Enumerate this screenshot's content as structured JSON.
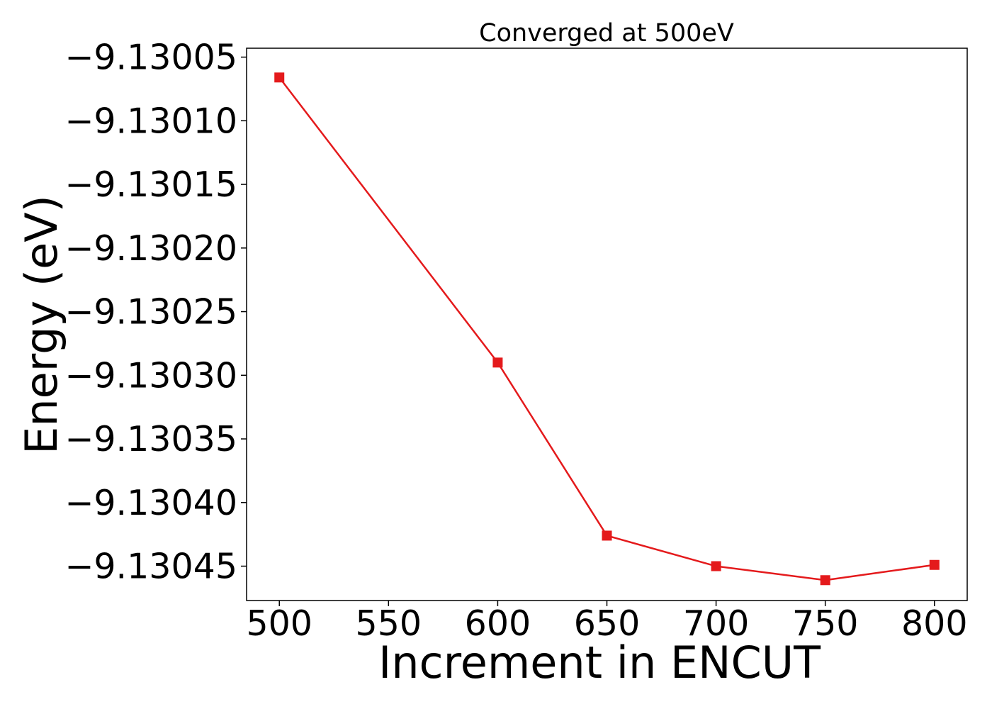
{
  "chart_data": {
    "type": "line",
    "title": "Converged at 500eV",
    "xlabel": "Increment in ENCUT",
    "ylabel": "Energy (eV)",
    "x": [
      500,
      600,
      650,
      700,
      750,
      800
    ],
    "series": [
      {
        "values": [
          -9.130066,
          -9.13029,
          -9.130426,
          -9.13045,
          -9.130461,
          -9.130449
        ],
        "color": "#e41a1c",
        "marker": "square"
      }
    ],
    "xlim": [
      485,
      815
    ],
    "ylim": [
      -9.130477,
      -9.130043
    ],
    "x_ticks": [
      500,
      550,
      600,
      650,
      700,
      750,
      800
    ],
    "x_tick_labels": [
      "500",
      "550",
      "600",
      "650",
      "700",
      "750",
      "800"
    ],
    "y_ticks": [
      -9.13005,
      -9.1301,
      -9.13015,
      -9.1302,
      -9.13025,
      -9.1303,
      -9.13035,
      -9.1304,
      -9.13045
    ],
    "y_tick_labels": [
      "−9.13005",
      "−9.13010",
      "−9.13015",
      "−9.13020",
      "−9.13025",
      "−9.13030",
      "−9.13035",
      "−9.13040",
      "−9.13045"
    ],
    "grid": false,
    "legend": "none"
  }
}
